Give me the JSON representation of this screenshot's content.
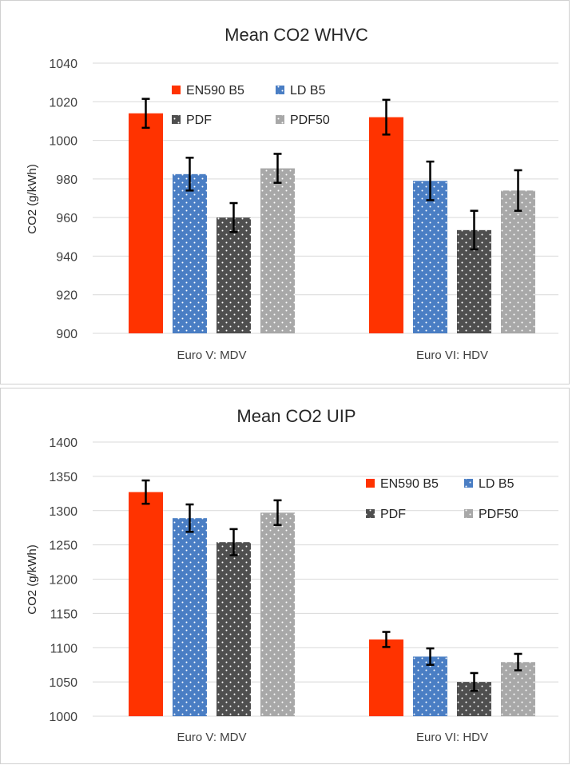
{
  "chart_data": [
    {
      "type": "bar",
      "title": "Mean CO2 WHVC",
      "ylabel": "CO2 (g/kWh)",
      "xlabel": "",
      "ylim": [
        900,
        1040
      ],
      "yticks": [
        900,
        920,
        940,
        960,
        980,
        1000,
        1020,
        1040
      ],
      "categories": [
        "Euro V: MDV",
        "Euro VI: HDV"
      ],
      "series": [
        {
          "name": "EN590 B5",
          "values": [
            1014,
            1012
          ],
          "error": [
            7.5,
            9
          ]
        },
        {
          "name": "LD B5",
          "values": [
            982.5,
            979
          ],
          "error": [
            8.5,
            10
          ]
        },
        {
          "name": "PDF",
          "values": [
            960,
            953.5
          ],
          "error": [
            7.5,
            10
          ]
        },
        {
          "name": "PDF50",
          "values": [
            985.5,
            974
          ],
          "error": [
            7.5,
            10.5
          ]
        }
      ],
      "legend_position": "top-center",
      "grid": true
    },
    {
      "type": "bar",
      "title": "Mean CO2 UIP",
      "ylabel": "CO2 (g/kWh)",
      "xlabel": "",
      "ylim": [
        1000,
        1400
      ],
      "yticks": [
        1000,
        1050,
        1100,
        1150,
        1200,
        1250,
        1300,
        1350,
        1400
      ],
      "categories": [
        "Euro V: MDV",
        "Euro VI: HDV"
      ],
      "series": [
        {
          "name": "EN590 B5",
          "values": [
            1327,
            1112
          ],
          "error": [
            17,
            11
          ]
        },
        {
          "name": "LD B5",
          "values": [
            1289,
            1087
          ],
          "error": [
            20,
            12
          ]
        },
        {
          "name": "PDF",
          "values": [
            1254,
            1050
          ],
          "error": [
            19,
            13
          ]
        },
        {
          "name": "PDF50",
          "values": [
            1297,
            1079
          ],
          "error": [
            18,
            12
          ]
        }
      ],
      "legend_position": "right",
      "grid": true
    }
  ],
  "styles": {
    "series_colors": [
      "#ff3300",
      "#4a7ec4",
      "#4f4f4f",
      "#a8a8a8"
    ],
    "series_pattern": [
      "solid",
      "dotted",
      "dotted",
      "dotted"
    ],
    "grid_color": "#d9d9d9",
    "error_bar_color": "#000000"
  }
}
